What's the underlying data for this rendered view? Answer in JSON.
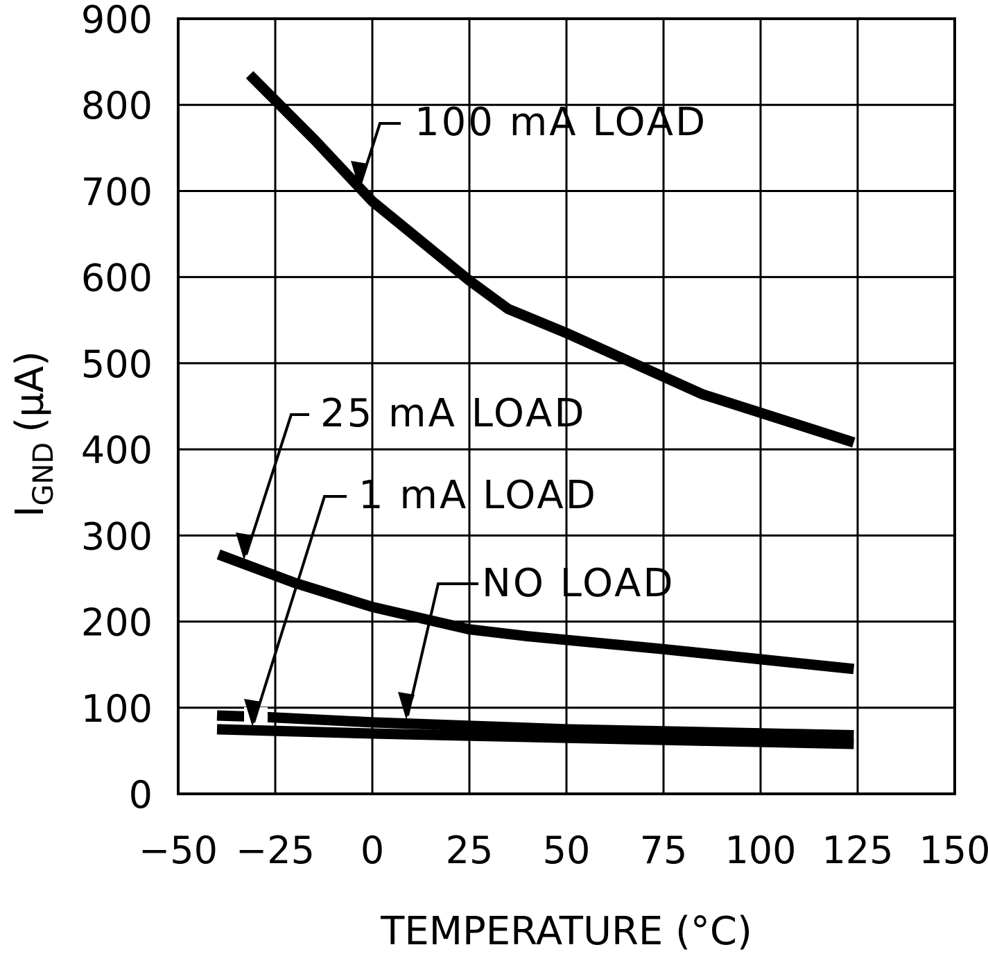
{
  "chart_data": {
    "type": "line",
    "title": "",
    "xlabel": "TEMPERATURE (°C)",
    "ylabel_main": "I",
    "ylabel_sub": "GND",
    "ylabel_unit": "(µA)",
    "xlim": [
      -50,
      150
    ],
    "ylim": [
      0,
      900
    ],
    "xticks": [
      -50,
      -25,
      0,
      25,
      50,
      75,
      100,
      125,
      150
    ],
    "xtick_labels": [
      "−50",
      "−25",
      "0",
      "25",
      "50",
      "75",
      "100",
      "125",
      "150"
    ],
    "yticks": [
      0,
      100,
      200,
      300,
      400,
      500,
      600,
      700,
      800,
      900
    ],
    "ytick_labels": [
      "0",
      "100",
      "200",
      "300",
      "400",
      "500",
      "600",
      "700",
      "800",
      "900"
    ],
    "grid": true,
    "line_color": "#000000",
    "series": [
      {
        "name": "100 mA LOAD",
        "x": [
          -31.6,
          -15,
          0,
          25,
          35,
          50,
          85,
          124
        ],
        "y": [
          835,
          760,
          688,
          596,
          563,
          535,
          464,
          408
        ]
      },
      {
        "name": "25 mA LOAD",
        "x": [
          -39.6,
          -20,
          0,
          25,
          40,
          75,
          124
        ],
        "y": [
          278,
          245,
          217,
          191,
          183,
          168,
          145
        ]
      },
      {
        "name": "1 mA LOAD",
        "x": [
          -40,
          -26.5,
          0,
          50,
          124
        ],
        "y": [
          91,
          89,
          83,
          75,
          68
        ]
      },
      {
        "name": "NO LOAD",
        "x": [
          -40,
          0,
          50,
          124
        ],
        "y": [
          75,
          70,
          65,
          58
        ]
      }
    ]
  }
}
